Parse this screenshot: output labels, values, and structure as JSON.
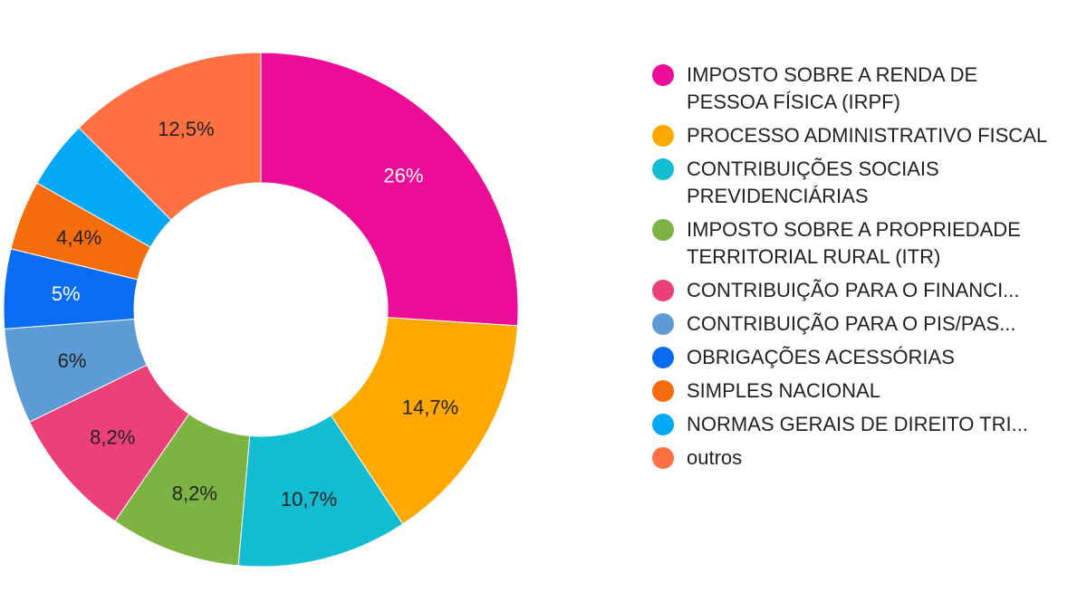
{
  "chart_data": {
    "type": "pie",
    "variant": "donut",
    "legend_position": "right",
    "slices": [
      {
        "label": "IMPOSTO SOBRE A RENDA DE PESSOA FÍSICA (IRPF)",
        "value": 26,
        "display": "26%",
        "color": "#EC0C98",
        "label_color": "#ffffff"
      },
      {
        "label": "PROCESSO ADMINISTRATIVO FISCAL",
        "value": 14.7,
        "display": "14,7%",
        "color": "#FFA800",
        "label_color": "#222222"
      },
      {
        "label": "CONTRIBUIÇÕES SOCIAIS PREVIDENCIÁRIAS",
        "value": 10.7,
        "display": "10,7%",
        "color": "#12BCD1",
        "label_color": "#222222"
      },
      {
        "label": "IMPOSTO SOBRE A PROPRIEDADE TERRITORIAL RURAL (ITR)",
        "value": 8.2,
        "display": "8,2%",
        "color": "#7CB342",
        "label_color": "#222222"
      },
      {
        "label": "CONTRIBUIÇÃO PARA O FINANCI...",
        "value": 8.2,
        "display": "8,2%",
        "color": "#EC407A",
        "label_color": "#222222"
      },
      {
        "label": "CONTRIBUIÇÃO PARA O PIS/PAS...",
        "value": 6,
        "display": "6%",
        "color": "#5C9BD5",
        "label_color": "#222222"
      },
      {
        "label": "OBRIGAÇÕES ACESSÓRIAS",
        "value": 5,
        "display": "5%",
        "color": "#0A6CF2",
        "label_color": "#ffffff"
      },
      {
        "label": "SIMPLES NACIONAL",
        "value": 4.4,
        "display": "4,4%",
        "color": "#F46C0C",
        "label_color": "#222222"
      },
      {
        "label": "NORMAS GERAIS DE DIREITO TRI...",
        "value": 4.3,
        "display": "",
        "color": "#03A9F4",
        "label_color": "#222222"
      },
      {
        "label": "outros",
        "value": 12.5,
        "display": "12,5%",
        "color": "#FF7043",
        "label_color": "#222222"
      }
    ]
  }
}
